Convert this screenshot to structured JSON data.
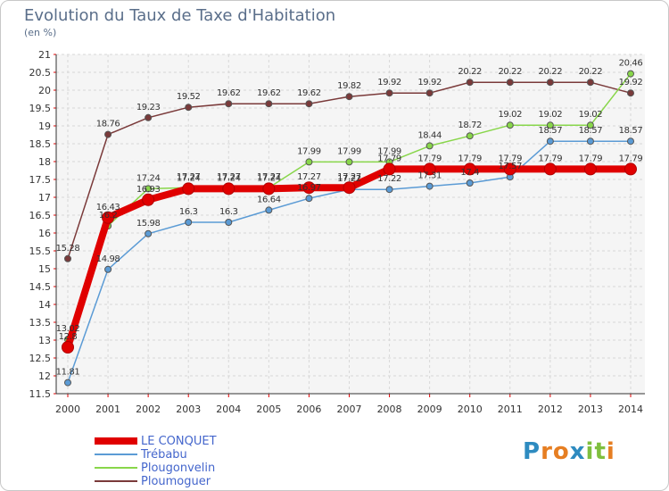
{
  "title": "Evolution du Taux de Taxe d'Habitation",
  "subtitle": "(en %)",
  "logo_text": "Proxiti",
  "chart_data": {
    "type": "line",
    "title": "Evolution du Taux de Taxe d'Habitation",
    "ylabel": "(en %)",
    "xlabel": "",
    "x": [
      "2000",
      "2001",
      "2002",
      "2003",
      "2004",
      "2005",
      "2006",
      "2007",
      "2008",
      "2009",
      "2010",
      "2011",
      "2012",
      "2013",
      "2014"
    ],
    "yticks": [
      "11.5",
      "12",
      "12.5",
      "13",
      "13.5",
      "14",
      "14.5",
      "15",
      "15.5",
      "16",
      "16.5",
      "17",
      "17.5",
      "18",
      "18.5",
      "19",
      "19.5",
      "20",
      "20.5",
      "21"
    ],
    "ylim": [
      11.5,
      21
    ],
    "grid": true,
    "legend_position": "bottom-left",
    "series": [
      {
        "name": "LE CONQUET",
        "color": "#e00000",
        "labels": [
          "12.8",
          "16.43",
          "16.93",
          "17.24",
          "17.24",
          "17.24",
          "17.27",
          "17.27",
          "17.79",
          "17.79",
          "17.79",
          "17.79",
          "17.79",
          "17.79",
          "17.79"
        ],
        "values": [
          12.8,
          16.43,
          16.93,
          17.24,
          17.24,
          17.24,
          17.27,
          17.27,
          17.79,
          17.79,
          17.79,
          17.79,
          17.79,
          17.79,
          17.79
        ]
      },
      {
        "name": "Trébabu",
        "color": "#5b9bd5",
        "labels": [
          "11.81",
          "14.98",
          "15.98",
          "16.3",
          "16.3",
          "16.64",
          "16.97",
          "17.22",
          "17.22",
          "17.31",
          "17.4",
          "17.57",
          "18.57",
          "18.57",
          "18.57"
        ],
        "values": [
          11.81,
          14.98,
          15.98,
          16.3,
          16.3,
          16.64,
          16.97,
          17.22,
          17.22,
          17.31,
          17.4,
          17.57,
          18.57,
          18.57,
          18.57
        ]
      },
      {
        "name": "Plougonvelin",
        "color": "#88d64a",
        "labels": [
          "13.02",
          "16.2",
          "17.24",
          "17.27",
          "17.27",
          "17.27",
          "17.99",
          "17.99",
          "17.99",
          "18.44",
          "18.72",
          "19.02",
          "19.02",
          "19.02",
          "20.46"
        ],
        "values": [
          13.02,
          16.2,
          17.24,
          17.27,
          17.27,
          17.27,
          17.99,
          17.99,
          17.99,
          18.44,
          18.72,
          19.02,
          19.02,
          19.02,
          20.46
        ]
      },
      {
        "name": "Ploumoguer",
        "color": "#7a3a3a",
        "labels": [
          "15.28",
          "18.76",
          "19.23",
          "19.52",
          "19.62",
          "19.62",
          "19.62",
          "19.82",
          "19.92",
          "19.92",
          "20.22",
          "20.22",
          "20.22",
          "20.22",
          "19.92"
        ],
        "values": [
          15.28,
          18.76,
          19.23,
          19.52,
          19.62,
          19.62,
          19.62,
          19.82,
          19.92,
          19.92,
          20.22,
          20.22,
          20.22,
          20.22,
          19.92
        ]
      }
    ]
  }
}
